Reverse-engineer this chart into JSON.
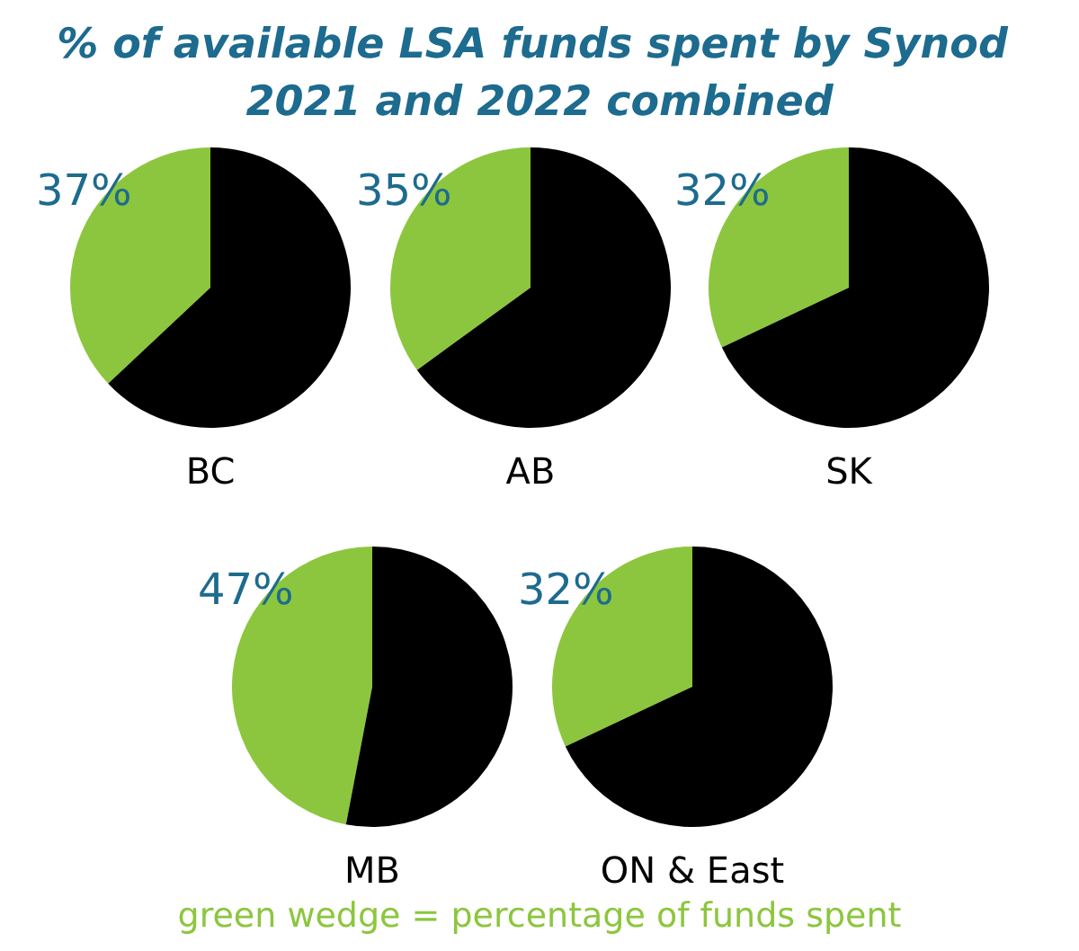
{
  "chart_data": [
    {
      "type": "other",
      "title": "% of available LSA funds spent by Synod 2021 and 2022 combined",
      "annotations": [
        "green wedge = percentage of funds spent"
      ]
    },
    {
      "type": "pie",
      "title": "BC",
      "categories": [
        null,
        null
      ],
      "values": [
        37,
        63
      ],
      "colors": [
        "#8cc63e",
        "#000000"
      ],
      "value_labels": [
        "37%",
        null
      ]
    },
    {
      "type": "pie",
      "title": "AB",
      "categories": [
        null,
        null
      ],
      "values": [
        35,
        65
      ],
      "colors": [
        "#8cc63e",
        "#000000"
      ],
      "value_labels": [
        "35%",
        null
      ]
    },
    {
      "type": "pie",
      "title": "SK",
      "categories": [
        null,
        null
      ],
      "values": [
        32,
        68
      ],
      "colors": [
        "#8cc63e",
        "#000000"
      ],
      "value_labels": [
        "32%",
        null
      ]
    },
    {
      "type": "pie",
      "title": "MB",
      "categories": [
        null,
        null
      ],
      "values": [
        47,
        53
      ],
      "colors": [
        "#8cc63e",
        "#000000"
      ],
      "value_labels": [
        "47%",
        null
      ]
    },
    {
      "type": "pie",
      "title": "ON & East",
      "categories": [
        null,
        null
      ],
      "values": [
        32,
        68
      ],
      "colors": [
        "#8cc63e",
        "#000000"
      ],
      "value_labels": [
        "32%",
        null
      ]
    }
  ]
}
